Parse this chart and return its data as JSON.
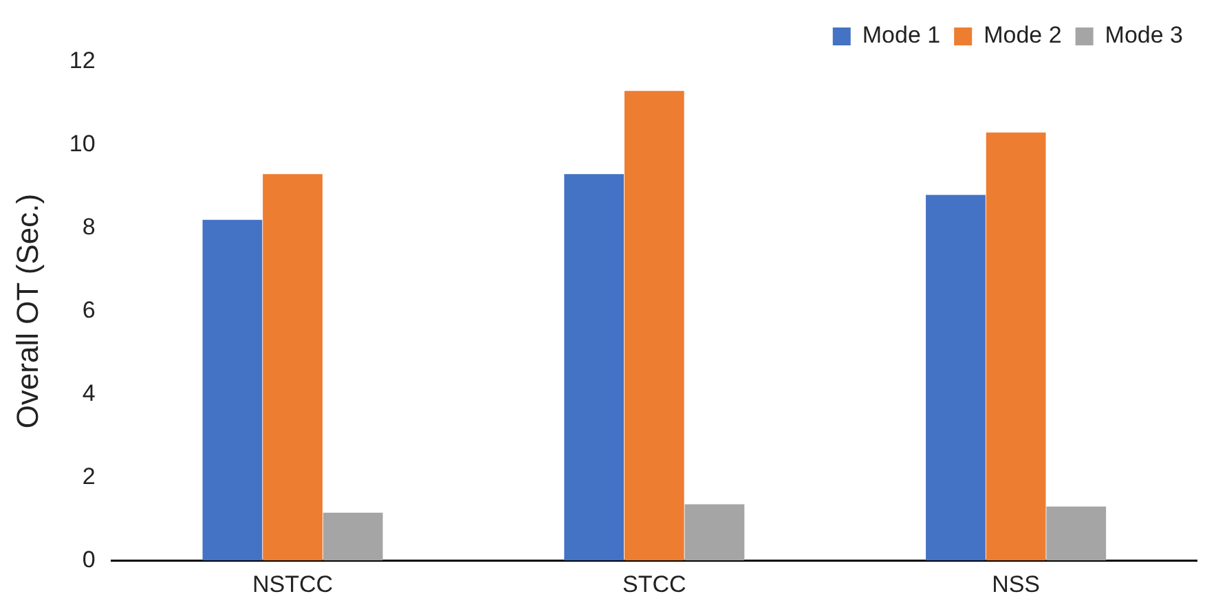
{
  "chart_data": {
    "type": "bar",
    "ylabel": "Overall OT (Sec.)",
    "categories": [
      "NSTCC",
      "STCC",
      "NSS"
    ],
    "series": [
      {
        "name": "Mode 1",
        "color": "#4472c4",
        "values": [
          8.2,
          9.3,
          8.8
        ]
      },
      {
        "name": "Mode 2",
        "color": "#ed7d31",
        "values": [
          9.3,
          11.3,
          10.3
        ]
      },
      {
        "name": "Mode 3",
        "color": "#a5a5a5",
        "values": [
          1.15,
          1.35,
          1.3
        ]
      }
    ],
    "ylim": [
      0,
      12
    ],
    "yticks": [
      0,
      2,
      4,
      6,
      8,
      10,
      12
    ],
    "grid": false,
    "legend": "top right"
  }
}
